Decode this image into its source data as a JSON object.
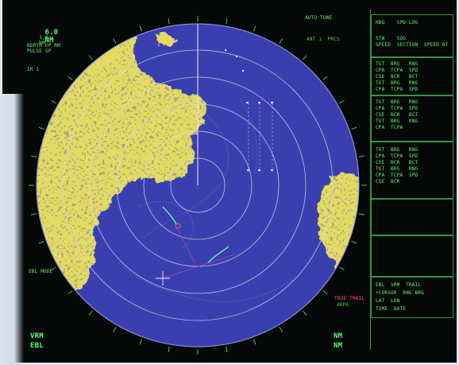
{
  "header": {
    "range_value": "6.0",
    "range_units": "NM",
    "ring_interval": "1.0",
    "ring_units": "NM",
    "mode_line1": "NORTH UP RM",
    "mode_line2": "PULSE SP",
    "gain_label": "IR 1"
  },
  "top_center": {
    "tune_label": "AUTO TUNE",
    "status_line": "ANT 1  PRCS"
  },
  "panel": {
    "top_lines": [
      "HDG    SPD LOG",
      "STW    SOG",
      "SPEED  SECTION  SPEED DT"
    ],
    "target_blocks": [
      {
        "lines": [
          "TGT  BRG   RNG",
          "CPA  TCPA  SPD",
          "CSE  BCR   BCT",
          "TGT  BRG   RNG",
          "CPA  TCPA  SPD"
        ]
      },
      {
        "lines": [
          "TGT  BRG   RNG",
          "CPA  TCPA  SPD",
          "CSE  BCR   BCT",
          "TGT  BRG   RNG",
          "CPA  TCPA"
        ]
      },
      {
        "lines": [
          "TGT  BRG   RNG",
          "CPA  TCPA  SPD",
          "CSE  BCR   BCT",
          "TGT  BRG   RNG",
          "CPA  TCPA  SPD",
          "CSE  BCR"
        ]
      }
    ],
    "bottom_block": {
      "lines": [
        "EBL  VRM  TRAIL",
        "+CURSOR  RNG BRG",
        "LAT  LON",
        "TIME  DATE"
      ]
    }
  },
  "alarm": {
    "text_line1": "TRUE TRAIL",
    "text_line2": "ARPA"
  },
  "bottom_left": {
    "line1": "VRM",
    "line2": "EBL"
  },
  "bottom_right": {
    "line1": "NM",
    "line2": "NM"
  },
  "left_side": {
    "ebl_label": "EBL MODE"
  },
  "colors": {
    "sea": "#3a3fb0",
    "land": "#e4dc66",
    "land_dark": "#b8a84a",
    "ring": "#d7d7f0",
    "text": "#59ff6a",
    "alarm": "#ff5a5a"
  }
}
